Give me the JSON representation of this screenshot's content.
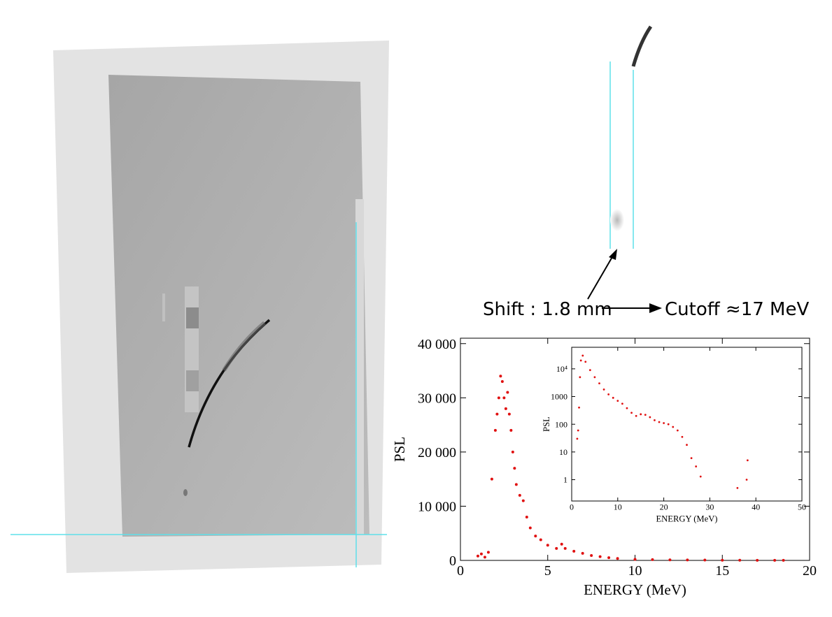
{
  "annotations": {
    "shift": "Shift : 1.8 mm",
    "cutoff": "Cutoff ≈17 MeV"
  },
  "chart_data": [
    {
      "type": "scatter",
      "xlabel": "ENERGY (MeV)",
      "ylabel": "PSL",
      "color": "#e01010",
      "x": [
        1.0,
        1.2,
        1.4,
        1.6,
        1.8,
        2.0,
        2.1,
        2.2,
        2.3,
        2.4,
        2.5,
        2.6,
        2.7,
        2.8,
        2.9,
        3.0,
        3.1,
        3.2,
        3.4,
        3.6,
        3.8,
        4.0,
        4.3,
        4.6,
        5.0,
        5.5,
        5.8,
        6.0,
        6.5,
        7.0,
        7.5,
        8.0,
        8.5,
        9.0,
        10,
        11,
        12,
        13,
        14,
        15,
        16,
        17,
        18,
        18.5
      ],
      "values": [
        800,
        1200,
        600,
        1500,
        15000,
        24000,
        27000,
        30000,
        34000,
        33000,
        30000,
        28000,
        31000,
        27000,
        24000,
        20000,
        17000,
        14000,
        12000,
        11000,
        8000,
        6000,
        4500,
        3800,
        2800,
        2200,
        3000,
        2200,
        1700,
        1300,
        900,
        700,
        500,
        350,
        200,
        150,
        100,
        80,
        60,
        40,
        30,
        20,
        15,
        10
      ],
      "xlim": [
        0,
        20
      ],
      "xticks": [
        0,
        5,
        10,
        15,
        20
      ],
      "ylim": [
        0,
        41000
      ],
      "yticks": [
        0,
        {
          "value": 10000,
          "label": "10 000"
        },
        {
          "value": 20000,
          "label": "20 000"
        },
        {
          "value": 30000,
          "label": "30 000"
        },
        {
          "value": 40000,
          "label": "40 000"
        }
      ]
    },
    {
      "type": "scatter",
      "xlabel": "ENERGY (MeV)",
      "ylabel": "PSL",
      "color": "#e01010",
      "log_y": true,
      "x": [
        1.2,
        1.4,
        1.6,
        1.8,
        2,
        2.4,
        3,
        4,
        5,
        6,
        7,
        8,
        9,
        10,
        11,
        12,
        13,
        14,
        15,
        16,
        17,
        18,
        19,
        20,
        21,
        22,
        23,
        24,
        25,
        26,
        27,
        28,
        36,
        38,
        38.2
      ],
      "values": [
        30,
        60,
        400,
        5000,
        20000,
        30000,
        18000,
        9000,
        5000,
        3000,
        1800,
        1200,
        900,
        700,
        550,
        380,
        260,
        200,
        230,
        220,
        180,
        140,
        120,
        110,
        100,
        80,
        60,
        35,
        18,
        6,
        3,
        1.3,
        0.5,
        1,
        5
      ],
      "xlim": [
        0,
        50
      ],
      "xticks": [
        0,
        10,
        20,
        30,
        40,
        50
      ],
      "ylim": [
        0.17,
        60000
      ],
      "yticks": [
        1,
        10,
        100,
        1000,
        {
          "value": 10000,
          "label": "10⁴"
        }
      ]
    }
  ]
}
